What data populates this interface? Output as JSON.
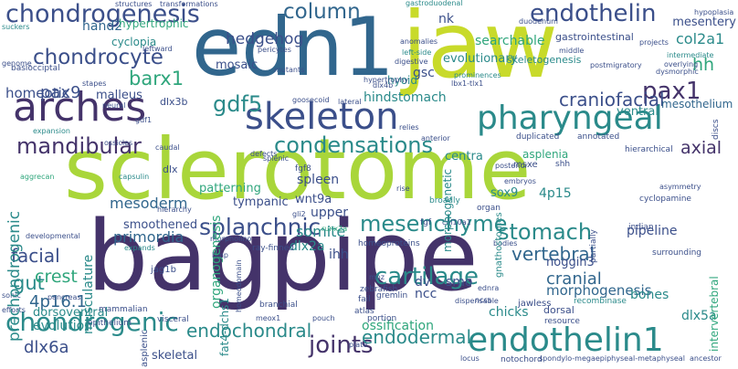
{
  "palette": {
    "dark_purple": "#44336a",
    "indigo": "#3b4f8a",
    "blue": "#31668d",
    "teal": "#2a8a8a",
    "green": "#2fa67c",
    "lime": "#a9d63a",
    "yellow_green": "#c8da2a",
    "light_green": "#7fd06b",
    "faint": "#cfe64a"
  },
  "words": [
    {
      "text": "bagpipe",
      "color": "dark_purple",
      "rot": 0
    },
    {
      "text": "sclerotome",
      "color": "lime",
      "rot": 0
    },
    {
      "text": "edn1",
      "color": "blue",
      "rot": 0
    },
    {
      "text": "jaw",
      "color": "yellow_green",
      "rot": 0
    },
    {
      "text": "arches",
      "color": "dark_purple",
      "rot": 0
    },
    {
      "text": "skeleton",
      "color": "indigo",
      "rot": 0
    },
    {
      "text": "pharyngeal",
      "color": "teal",
      "rot": 0
    },
    {
      "text": "endothelin1",
      "color": "teal",
      "rot": 0
    },
    {
      "text": "chondrogenesis",
      "color": "indigo",
      "rot": 0
    },
    {
      "text": "chondrocyte",
      "color": "indigo",
      "rot": 0
    },
    {
      "text": "chondrogenic",
      "color": "teal",
      "rot": 0
    },
    {
      "text": "endothelin",
      "color": "indigo",
      "rot": 0
    },
    {
      "text": "column",
      "color": "blue",
      "rot": 0
    },
    {
      "text": "stomach",
      "color": "teal",
      "rot": 0
    },
    {
      "text": "vertebral",
      "color": "blue",
      "rot": 0
    },
    {
      "text": "cartilage",
      "color": "teal",
      "rot": 0
    },
    {
      "text": "mesenchyme",
      "color": "teal",
      "rot": 0
    },
    {
      "text": "splanchnic",
      "color": "indigo",
      "rot": 0
    },
    {
      "text": "condensations",
      "color": "teal",
      "rot": 0
    },
    {
      "text": "mandibular",
      "color": "dark_purple",
      "rot": 0
    },
    {
      "text": "joints",
      "color": "dark_purple",
      "rot": 0
    },
    {
      "text": "gdf5",
      "color": "teal",
      "rot": 0
    },
    {
      "text": "pax1",
      "color": "dark_purple",
      "rot": 0
    },
    {
      "text": "pax9",
      "color": "indigo",
      "rot": 0
    },
    {
      "text": "barx1",
      "color": "green",
      "rot": 0
    },
    {
      "text": "hedgehog",
      "color": "indigo",
      "rot": 0
    },
    {
      "text": "craniofacial",
      "color": "indigo",
      "rot": 0
    },
    {
      "text": "facial",
      "color": "indigo",
      "rot": 0
    },
    {
      "text": "gut",
      "color": "teal",
      "rot": 0
    },
    {
      "text": "crest",
      "color": "green",
      "rot": 0
    },
    {
      "text": "4p16.1",
      "color": "blue",
      "rot": 0
    },
    {
      "text": "endochondral",
      "color": "teal",
      "rot": 0
    },
    {
      "text": "endodermal",
      "color": "teal",
      "rot": 0
    },
    {
      "text": "dlx6a",
      "color": "indigo",
      "rot": 0
    },
    {
      "text": "cranial",
      "color": "blue",
      "rot": 0
    },
    {
      "text": "axial",
      "color": "dark_purple",
      "rot": 0
    },
    {
      "text": "col2a1",
      "color": "teal",
      "rot": 0
    },
    {
      "text": "hh",
      "color": "green",
      "rot": 0
    },
    {
      "text": "mesoderm",
      "color": "blue",
      "rot": 0
    },
    {
      "text": "primordia",
      "color": "blue",
      "rot": 0
    },
    {
      "text": "somite",
      "color": "teal",
      "rot": 0
    },
    {
      "text": "mesothelium",
      "color": "blue",
      "rot": 0
    },
    {
      "text": "hand2",
      "color": "blue",
      "rot": 0
    },
    {
      "text": "hypertrophic",
      "color": "green",
      "rot": 0
    },
    {
      "text": "homeotic",
      "color": "indigo",
      "rot": 0
    },
    {
      "text": "cyclopia",
      "color": "teal",
      "rot": 0
    },
    {
      "text": "malleus",
      "color": "indigo",
      "rot": 0
    },
    {
      "text": "mosaic",
      "color": "indigo",
      "rot": 0
    },
    {
      "text": "hindstomach",
      "color": "teal",
      "rot": 0
    },
    {
      "text": "evolutionary",
      "color": "teal",
      "rot": 0
    },
    {
      "text": "searchable",
      "color": "green",
      "rot": 0
    },
    {
      "text": "skeletogenesis",
      "color": "teal",
      "rot": 0
    },
    {
      "text": "nk",
      "color": "indigo",
      "rot": 0
    },
    {
      "text": "gsc",
      "color": "indigo",
      "rot": 0
    },
    {
      "text": "ventral",
      "color": "teal",
      "rot": 0
    },
    {
      "text": "mesentery",
      "color": "indigo",
      "rot": 0
    },
    {
      "text": "gastrointestinal",
      "color": "indigo",
      "rot": 0
    },
    {
      "text": "sox9",
      "color": "teal",
      "rot": 0
    },
    {
      "text": "4p15",
      "color": "teal",
      "rot": 0
    },
    {
      "text": "wnt9a",
      "color": "indigo",
      "rot": 0
    },
    {
      "text": "tympanic",
      "color": "indigo",
      "rot": 0
    },
    {
      "text": "upper",
      "color": "indigo",
      "rot": 0
    },
    {
      "text": "ihh",
      "color": "indigo",
      "rot": 0
    },
    {
      "text": "dlx2a",
      "color": "teal",
      "rot": 0
    },
    {
      "text": "dv",
      "color": "indigo",
      "rot": 0
    },
    {
      "text": "ncc",
      "color": "indigo",
      "rot": 0
    },
    {
      "text": "smo",
      "color": "indigo",
      "rot": 0
    },
    {
      "text": "noggin3",
      "color": "indigo",
      "rot": 0
    },
    {
      "text": "pipeline",
      "color": "indigo",
      "rot": 0
    },
    {
      "text": "morphogenesis",
      "color": "blue",
      "rot": 0
    },
    {
      "text": "bones",
      "color": "teal",
      "rot": 0
    },
    {
      "text": "dlx5a",
      "color": "teal",
      "rot": 0
    },
    {
      "text": "ossification",
      "color": "green",
      "rot": 0
    },
    {
      "text": "evolution",
      "color": "teal",
      "rot": 0
    },
    {
      "text": "skeletal",
      "color": "indigo",
      "rot": 0
    },
    {
      "text": "chicks",
      "color": "teal",
      "rot": 0
    },
    {
      "text": "dorsal",
      "color": "indigo",
      "rot": 0
    },
    {
      "text": "dorsoventral",
      "color": "teal",
      "rot": 0
    },
    {
      "text": "smoothened",
      "color": "indigo",
      "rot": 0
    },
    {
      "text": "patterning",
      "color": "green",
      "rot": 0
    },
    {
      "text": "spleen",
      "color": "indigo",
      "rot": 0
    },
    {
      "text": "asplenia",
      "color": "green",
      "rot": 0
    },
    {
      "text": "centra",
      "color": "teal",
      "rot": 0
    },
    {
      "text": "dlx",
      "color": "indigo",
      "rot": 0
    },
    {
      "text": "dlx3b",
      "color": "indigo",
      "rot": 0
    },
    {
      "text": "hyoid",
      "color": "teal",
      "rot": 0
    },
    {
      "text": "duplicated",
      "color": "indigo",
      "rot": 0
    },
    {
      "text": "annotated",
      "color": "indigo",
      "rot": 0
    },
    {
      "text": "hierarchical",
      "color": "indigo",
      "rot": 0
    },
    {
      "text": "msxe",
      "color": "indigo",
      "rot": 0
    },
    {
      "text": "shh",
      "color": "indigo",
      "rot": 0
    },
    {
      "text": "basiocciptal",
      "color": "indigo",
      "rot": 0
    },
    {
      "text": "stapes",
      "color": "indigo",
      "rot": 0
    },
    {
      "text": "genome",
      "color": "indigo",
      "rot": 0
    },
    {
      "text": "suckers",
      "color": "teal",
      "rot": 0
    },
    {
      "text": "neural",
      "color": "indigo",
      "rot": 0
    },
    {
      "text": "expansion",
      "color": "teal",
      "rot": 0
    },
    {
      "text": "caudal",
      "color": "indigo",
      "rot": 0
    },
    {
      "text": "defects",
      "color": "indigo",
      "rot": 0
    },
    {
      "text": "aggrecan",
      "color": "green",
      "rot": 0
    },
    {
      "text": "capsulin",
      "color": "teal",
      "rot": 0
    },
    {
      "text": "hierarchy",
      "color": "indigo",
      "rot": 0
    },
    {
      "text": "fgf8",
      "color": "indigo",
      "rot": 0
    },
    {
      "text": "fgf",
      "color": "indigo",
      "rot": 0
    },
    {
      "text": "organ",
      "color": "indigo",
      "rot": 0
    },
    {
      "text": "broadly",
      "color": "teal",
      "rot": 0
    },
    {
      "text": "posterior",
      "color": "indigo",
      "rot": 0
    },
    {
      "text": "embryos",
      "color": "indigo",
      "rot": 0
    },
    {
      "text": "cyclopamine",
      "color": "indigo",
      "rot": 0
    },
    {
      "text": "indian",
      "color": "indigo",
      "rot": 0
    },
    {
      "text": "surrounding",
      "color": "indigo",
      "rot": 0
    },
    {
      "text": "col10a1",
      "color": "indigo",
      "rot": 0
    },
    {
      "text": "runx2a",
      "color": "green",
      "rot": 0
    },
    {
      "text": "bodies",
      "color": "indigo",
      "rot": 0
    },
    {
      "text": "homeoproteins",
      "color": "indigo",
      "rot": 0
    },
    {
      "text": "ray-finned",
      "color": "indigo",
      "rot": 0
    },
    {
      "text": "morpholino",
      "color": "indigo",
      "rot": 0
    },
    {
      "text": "expands",
      "color": "teal",
      "rot": 0
    },
    {
      "text": "bmp",
      "color": "indigo",
      "rot": 0
    },
    {
      "text": "jag1b",
      "color": "indigo",
      "rot": 0
    },
    {
      "text": "zebrafish",
      "color": "indigo",
      "rot": 0
    },
    {
      "text": "moz",
      "color": "indigo",
      "rot": 0
    },
    {
      "text": "gremlin",
      "color": "indigo",
      "rot": 0
    },
    {
      "text": "atlas",
      "color": "indigo",
      "rot": 0
    },
    {
      "text": "fail",
      "color": "indigo",
      "rot": 0
    },
    {
      "text": "portion",
      "color": "indigo",
      "rot": 0
    },
    {
      "text": "ednra",
      "color": "indigo",
      "rot": 0
    },
    {
      "text": "nccs",
      "color": "indigo",
      "rot": 0
    },
    {
      "text": "jawless",
      "color": "indigo",
      "rot": 0
    },
    {
      "text": "resource",
      "color": "indigo",
      "rot": 0
    },
    {
      "text": "recombinase",
      "color": "teal",
      "rot": 0
    },
    {
      "text": "branchial",
      "color": "indigo",
      "rot": 0
    },
    {
      "text": "meox1",
      "color": "indigo",
      "rot": 0
    },
    {
      "text": "pouch",
      "color": "indigo",
      "rot": 0
    },
    {
      "text": "plate",
      "color": "indigo",
      "rot": 0
    },
    {
      "text": "mammalian",
      "color": "indigo",
      "rot": 0
    },
    {
      "text": "visceral",
      "color": "indigo",
      "rot": 0
    },
    {
      "text": "epithelium",
      "color": "indigo",
      "rot": 0
    },
    {
      "text": "notochord",
      "color": "indigo",
      "rot": 0
    },
    {
      "text": "locus",
      "color": "indigo",
      "rot": 0
    },
    {
      "text": "spondylo-megaepiphyseal-metaphyseal",
      "color": "indigo",
      "rot": 0
    },
    {
      "text": "ancestor",
      "color": "indigo",
      "rot": 0
    },
    {
      "text": "sonic",
      "color": "indigo",
      "rot": 0
    },
    {
      "text": "efforts",
      "color": "indigo",
      "rot": 0
    },
    {
      "text": "pancreas",
      "color": "indigo",
      "rot": 0
    },
    {
      "text": "structures",
      "color": "indigo",
      "rot": 0
    },
    {
      "text": "transformations",
      "color": "indigo",
      "rot": 0
    },
    {
      "text": "pericytes",
      "color": "indigo",
      "rot": 0
    },
    {
      "text": "leftward",
      "color": "indigo",
      "rot": 0
    },
    {
      "text": "mutants",
      "color": "indigo",
      "rot": 0
    },
    {
      "text": "anomalies",
      "color": "indigo",
      "rot": 0
    },
    {
      "text": "left-side",
      "color": "teal",
      "rot": 0
    },
    {
      "text": "digestive",
      "color": "indigo",
      "rot": 0
    },
    {
      "text": "goosecoid",
      "color": "indigo",
      "rot": 0
    },
    {
      "text": "lateral",
      "color": "indigo",
      "rot": 0
    },
    {
      "text": "hypertrophy",
      "color": "indigo",
      "rot": 0
    },
    {
      "text": "gastroduodenal",
      "color": "teal",
      "rot": 0
    },
    {
      "text": "duodenum",
      "color": "indigo",
      "rot": 0
    },
    {
      "text": "middle",
      "color": "indigo",
      "rot": 0
    },
    {
      "text": "projects",
      "color": "indigo",
      "rot": 0
    },
    {
      "text": "intermediate",
      "color": "teal",
      "rot": 0
    },
    {
      "text": "hypoplasia",
      "color": "indigo",
      "rot": 0
    },
    {
      "text": "overlying",
      "color": "indigo",
      "rot": 0
    },
    {
      "text": "dysmorphic",
      "color": "indigo",
      "rot": 0
    },
    {
      "text": "postmigratory",
      "color": "indigo",
      "rot": 0
    },
    {
      "text": "prominences",
      "color": "teal",
      "rot": 0
    },
    {
      "text": "lbx1-tlx1",
      "color": "indigo",
      "rot": 0
    },
    {
      "text": "gdf1",
      "color": "indigo",
      "rot": 0
    },
    {
      "text": "ossicles",
      "color": "indigo",
      "rot": 0
    },
    {
      "text": "splenic",
      "color": "indigo",
      "rot": 0
    },
    {
      "text": "anterior",
      "color": "indigo",
      "rot": 0
    },
    {
      "text": "relies",
      "color": "indigo",
      "rot": 0
    },
    {
      "text": "rise",
      "color": "indigo",
      "rot": 0
    },
    {
      "text": "gli2",
      "color": "indigo",
      "rot": 0
    },
    {
      "text": "developmental",
      "color": "indigo",
      "rot": 0
    },
    {
      "text": "asymmetry",
      "color": "indigo",
      "rot": 0
    },
    {
      "text": "dlx4b",
      "color": "indigo",
      "rot": 0
    },
    {
      "text": "dispensable",
      "color": "indigo",
      "rot": 0
    },
    {
      "text": "prechondrogenic",
      "color": "teal",
      "rot": -90
    },
    {
      "text": "musculature",
      "color": "teal",
      "rot": -90
    },
    {
      "text": "organogenesis",
      "color": "green",
      "rot": -90
    },
    {
      "text": "fat4-dchs1",
      "color": "teal",
      "rot": -90
    },
    {
      "text": "morphogenetic",
      "color": "teal",
      "rot": -90
    },
    {
      "text": "gnathostomes",
      "color": "teal",
      "rot": -90
    },
    {
      "text": "intervertebral",
      "color": "green",
      "rot": -90
    },
    {
      "text": "homeodomain",
      "color": "indigo",
      "rot": -90
    },
    {
      "text": "asplenic",
      "color": "indigo",
      "rot": -90
    },
    {
      "text": "discs",
      "color": "indigo",
      "rot": -90
    },
    {
      "text": "partially",
      "color": "indigo",
      "rot": -90
    }
  ]
}
